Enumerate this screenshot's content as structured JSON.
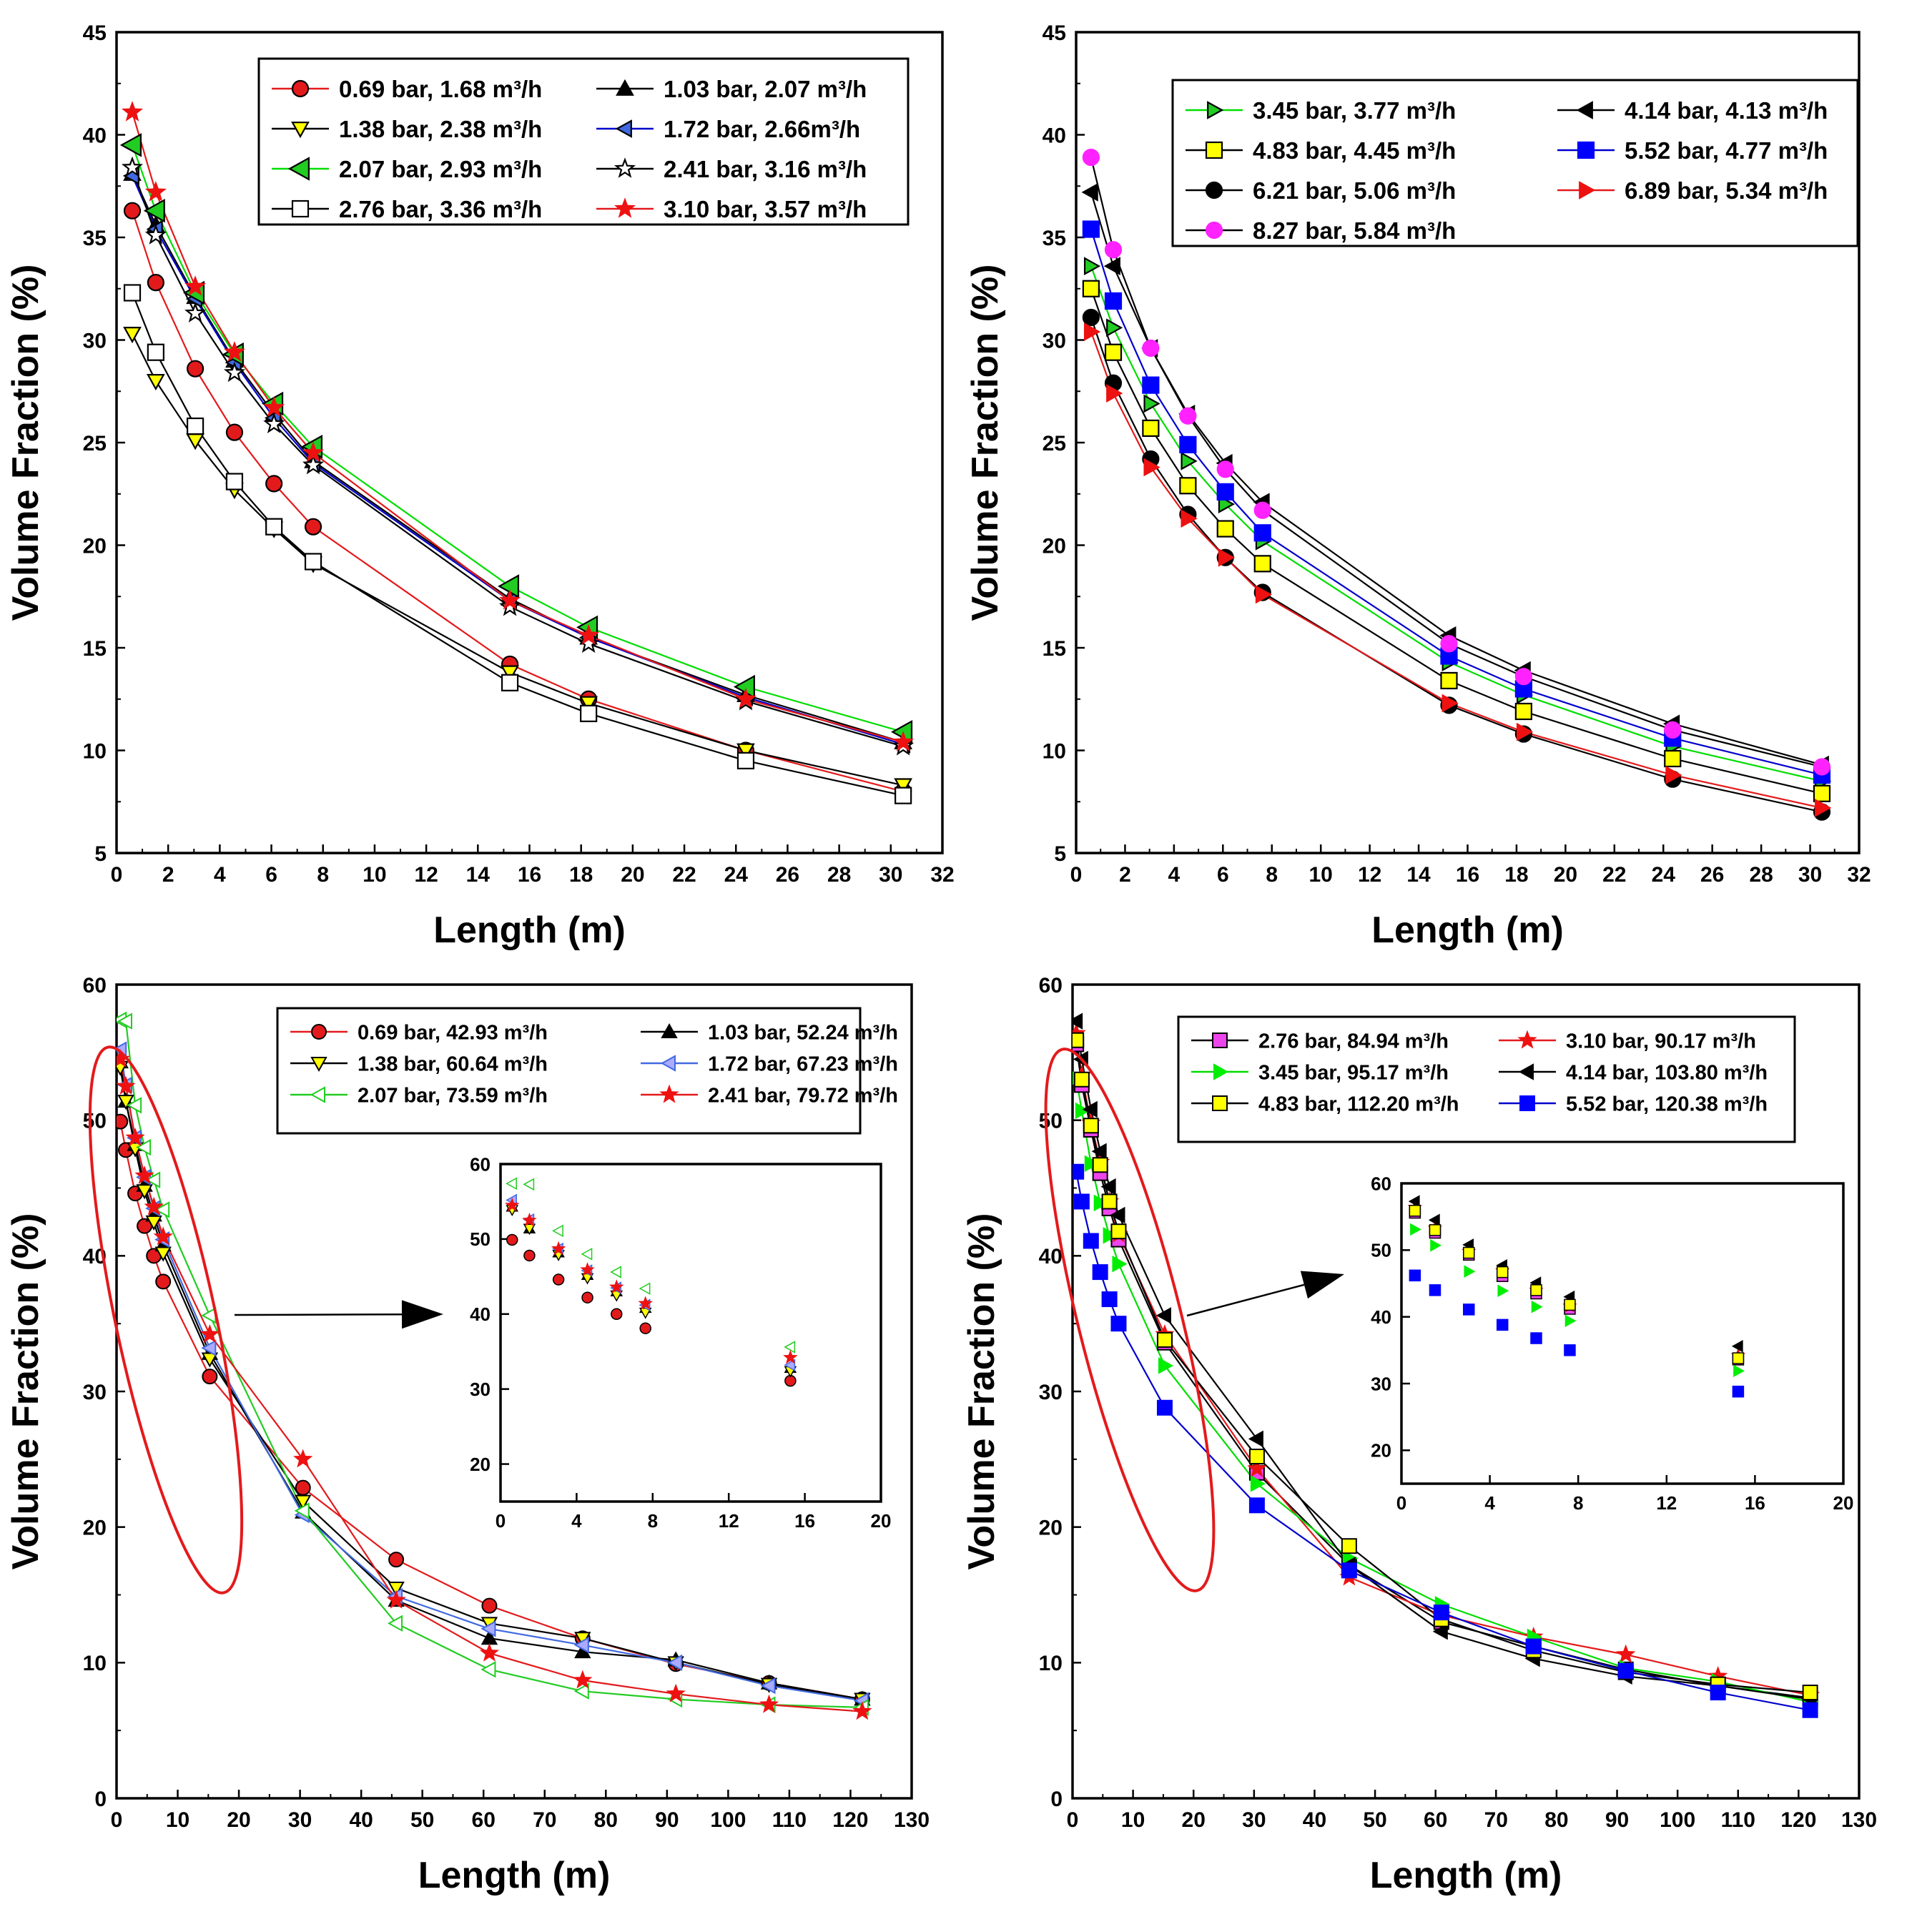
{
  "chart_data": [
    {
      "type": "line",
      "panel": "top-left",
      "xlabel": "Length (m)",
      "ylabel": "Volume Fraction (%)",
      "xlim": [
        0,
        32
      ],
      "ylim": [
        5,
        45
      ],
      "xticks": [
        0,
        2,
        4,
        6,
        8,
        10,
        12,
        14,
        16,
        18,
        20,
        22,
        24,
        26,
        28,
        30,
        32
      ],
      "yticks": [
        5,
        10,
        15,
        20,
        25,
        30,
        35,
        40,
        45
      ],
      "legend_cols": 2,
      "x": [
        0.61,
        1.52,
        3.05,
        4.57,
        6.1,
        7.62,
        15.24,
        18.29,
        24.38,
        30.48
      ],
      "series": [
        {
          "name": "0.69 bar, 1.68 m³/h",
          "color": "#e31a1c",
          "marker": "circle",
          "fill": "#e31a1c",
          "mstroke": "#000000",
          "values": [
            36.3,
            32.8,
            28.6,
            25.5,
            23.0,
            20.9,
            14.2,
            12.5,
            10.0,
            8.0
          ]
        },
        {
          "name": "1.03 bar, 2.07 m³/h",
          "color": "#000000",
          "marker": "triangle-up",
          "fill": "#000000",
          "mstroke": "#000000",
          "values": [
            38.1,
            35.6,
            32.1,
            29.0,
            26.4,
            24.1,
            17.4,
            15.5,
            12.7,
            10.4
          ]
        },
        {
          "name": "1.38 bar, 2.38 m³/h",
          "color": "#000000",
          "marker": "triangle-down",
          "fill": "#ffff00",
          "mstroke": "#000000",
          "values": [
            30.3,
            28.0,
            25.1,
            22.7,
            20.8,
            19.1,
            13.8,
            12.3,
            10.0,
            8.3
          ]
        },
        {
          "name": "1.72 bar, 2.66m³/h",
          "color": "#0000cc",
          "marker": "triangle-left",
          "fill": "#4169e1",
          "mstroke": "#000000",
          "values": [
            38.0,
            35.4,
            32.0,
            28.9,
            26.2,
            24.0,
            17.3,
            15.5,
            12.6,
            10.3
          ]
        },
        {
          "name": "2.07 bar, 2.93 m³/h",
          "color": "#00dd00",
          "marker": "triangle-left-big",
          "fill": "#22cc22",
          "mstroke": "#000000",
          "values": [
            39.5,
            36.3,
            32.3,
            29.3,
            26.9,
            24.8,
            18.0,
            16.0,
            13.1,
            10.9
          ]
        },
        {
          "name": "2.41 bar, 3.16 m³/h",
          "color": "#000000",
          "marker": "star-open",
          "fill": "#ffffff",
          "mstroke": "#000000",
          "values": [
            38.4,
            35.1,
            31.3,
            28.4,
            25.9,
            23.9,
            17.0,
            15.2,
            12.4,
            10.2
          ]
        },
        {
          "name": "2.76 bar, 3.36 m³/h",
          "color": "#000000",
          "marker": "square-open",
          "fill": "#ffffff",
          "mstroke": "#000000",
          "values": [
            32.3,
            29.4,
            25.8,
            23.1,
            20.9,
            19.2,
            13.3,
            11.8,
            9.5,
            7.8
          ]
        },
        {
          "name": "3.10 bar, 3.57 m³/h",
          "color": "#e31a1c",
          "marker": "star",
          "fill": "#ee1111",
          "mstroke": "#ee1111",
          "values": [
            41.1,
            37.2,
            32.6,
            29.4,
            26.7,
            24.5,
            17.3,
            15.6,
            12.5,
            10.4
          ]
        }
      ]
    },
    {
      "type": "line",
      "panel": "top-right",
      "xlabel": "Length (m)",
      "ylabel": "Volume Fraction (%)",
      "xlim": [
        0,
        32
      ],
      "ylim": [
        5,
        45
      ],
      "xticks": [
        0,
        2,
        4,
        6,
        8,
        10,
        12,
        14,
        16,
        18,
        20,
        22,
        24,
        26,
        28,
        30,
        32
      ],
      "yticks": [
        5,
        10,
        15,
        20,
        25,
        30,
        35,
        40,
        45
      ],
      "legend_cols": 2,
      "x": [
        0.61,
        1.52,
        3.05,
        4.57,
        6.1,
        7.62,
        15.24,
        18.29,
        24.38,
        30.48
      ],
      "series": [
        {
          "name": "3.45 bar, 3.77 m³/h",
          "color": "#00dd00",
          "marker": "triangle-right",
          "fill": "#22cc22",
          "mstroke": "#000000",
          "values": [
            33.6,
            30.6,
            26.9,
            24.1,
            22.0,
            20.2,
            14.3,
            12.7,
            10.2,
            8.5
          ]
        },
        {
          "name": "4.14 bar, 4.13 m³/h",
          "color": "#000000",
          "marker": "triangle-left",
          "fill": "#000000",
          "mstroke": "#000000",
          "values": [
            37.2,
            33.6,
            29.6,
            26.4,
            24.0,
            22.1,
            15.6,
            13.9,
            11.3,
            9.3
          ]
        },
        {
          "name": "4.83 bar, 4.45 m³/h",
          "color": "#000000",
          "marker": "square",
          "fill": "#ffff00",
          "mstroke": "#000000",
          "values": [
            32.5,
            29.4,
            25.7,
            22.9,
            20.8,
            19.1,
            13.4,
            11.9,
            9.6,
            7.9
          ]
        },
        {
          "name": "5.52 bar, 4.77 m³/h",
          "color": "#0000cc",
          "marker": "square",
          "fill": "#0000ff",
          "mstroke": "#0000ff",
          "values": [
            35.4,
            31.9,
            27.8,
            24.9,
            22.6,
            20.6,
            14.6,
            13.0,
            10.6,
            8.8
          ]
        },
        {
          "name": "6.21 bar, 5.06 m³/h",
          "color": "#000000",
          "marker": "circle",
          "fill": "#000000",
          "mstroke": "#000000",
          "values": [
            31.1,
            27.9,
            24.2,
            21.5,
            19.4,
            17.7,
            12.2,
            10.8,
            8.6,
            7.0
          ]
        },
        {
          "name": "6.89 bar, 5.34 m³/h",
          "color": "#e31a1c",
          "marker": "triangle-right",
          "fill": "#ee1111",
          "mstroke": "#ee1111",
          "values": [
            30.4,
            27.4,
            23.8,
            21.3,
            19.4,
            17.6,
            12.3,
            10.9,
            8.8,
            7.2
          ]
        },
        {
          "name": "8.27 bar, 5.84 m³/h",
          "color": "#000000",
          "marker": "circle",
          "fill": "#ff22ff",
          "mstroke": "#ff22ff",
          "values": [
            38.9,
            34.4,
            29.6,
            26.3,
            23.7,
            21.7,
            15.2,
            13.6,
            11.0,
            9.2
          ]
        }
      ]
    },
    {
      "type": "line",
      "panel": "bottom-left",
      "xlabel": "Length (m)",
      "ylabel": "Volume Fraction (%)",
      "xlim": [
        0,
        130
      ],
      "ylim": [
        0,
        60
      ],
      "xticks": [
        0,
        10,
        20,
        30,
        40,
        50,
        60,
        70,
        80,
        90,
        100,
        110,
        120,
        130
      ],
      "yticks": [
        0,
        10,
        20,
        30,
        40,
        50,
        60
      ],
      "legend_cols": 2,
      "x": [
        0.61,
        1.52,
        3.05,
        4.57,
        6.1,
        7.62,
        15.24,
        30.48,
        45.72,
        60.96,
        76.2,
        91.44,
        106.68,
        121.92
      ],
      "series": [
        {
          "name": "0.69 bar, 42.93 m³/h",
          "color": "#e31a1c",
          "marker": "circle",
          "fill": "#e31a1c",
          "mstroke": "#000000",
          "values": [
            49.9,
            47.8,
            44.6,
            42.2,
            40.0,
            38.1,
            31.1,
            22.9,
            17.6,
            14.2,
            11.8,
            9.9,
            8.5,
            7.3
          ]
        },
        {
          "name": "1.03 bar, 52.24 m³/h",
          "color": "#000000",
          "marker": "triangle-up",
          "fill": "#000000",
          "mstroke": "#000000",
          "values": [
            54.3,
            51.4,
            48.2,
            45.2,
            43.0,
            40.8,
            32.8,
            21.1,
            14.6,
            11.8,
            10.8,
            10.2,
            8.5,
            7.3
          ]
        },
        {
          "name": "1.38 bar, 60.64 m³/h",
          "color": "#000000",
          "marker": "triangle-down",
          "fill": "#ffff00",
          "mstroke": "#000000",
          "values": [
            53.9,
            51.4,
            47.9,
            44.8,
            42.5,
            40.2,
            32.4,
            21.9,
            15.5,
            12.9,
            11.8,
            10.0,
            8.4,
            7.3
          ]
        },
        {
          "name": "1.72 bar, 67.23 m³/h",
          "color": "#4169e1",
          "marker": "triangle-left",
          "fill": "#aaaaff",
          "mstroke": "#4169e1",
          "values": [
            55.2,
            52.6,
            48.7,
            45.8,
            43.5,
            41.2,
            33.2,
            20.9,
            14.9,
            12.5,
            11.3,
            10.0,
            8.3,
            7.2
          ]
        },
        {
          "name": "2.07 bar, 73.59 m³/h",
          "color": "#22cc22",
          "marker": "triangle-left-open",
          "fill": "#ffffff",
          "mstroke": "#22cc22",
          "values": [
            57.4,
            57.3,
            51.1,
            48.0,
            45.6,
            43.4,
            35.6,
            21.2,
            12.9,
            9.5,
            7.9,
            7.3,
            6.9,
            6.7
          ]
        },
        {
          "name": "2.41 bar, 79.72 m³/h",
          "color": "#e31a1c",
          "marker": "star",
          "fill": "#ee1111",
          "mstroke": "#ee1111",
          "values": [
            54.5,
            52.5,
            48.7,
            45.9,
            43.6,
            41.4,
            34.2,
            25.0,
            14.6,
            10.7,
            8.7,
            7.7,
            6.9,
            6.4
          ]
        }
      ],
      "inset": {
        "xlim": [
          0,
          20
        ],
        "ylim": [
          15,
          60
        ],
        "xticks": [
          0,
          4,
          8,
          12,
          16,
          20
        ],
        "yticks": [
          20,
          30,
          40,
          50,
          60
        ],
        "points_used": 7
      }
    },
    {
      "type": "line",
      "panel": "bottom-right",
      "xlabel": "Length (m)",
      "ylabel": "Volume Fraction (%)",
      "xlim": [
        0,
        130
      ],
      "ylim": [
        0,
        60
      ],
      "xticks": [
        0,
        10,
        20,
        30,
        40,
        50,
        60,
        70,
        80,
        90,
        100,
        110,
        120,
        130
      ],
      "yticks": [
        0,
        10,
        20,
        30,
        40,
        50,
        60
      ],
      "legend_cols": 2,
      "x": [
        0.61,
        1.52,
        3.05,
        4.57,
        6.1,
        7.62,
        15.24,
        30.48,
        45.72,
        60.96,
        76.2,
        91.44,
        106.68,
        121.92
      ],
      "series": [
        {
          "name": "2.76 bar, 84.94 m³/h",
          "color": "#000000",
          "marker": "square",
          "fill": "#ee44ee",
          "mstroke": "#000000",
          "values": [
            55.6,
            52.6,
            49.3,
            46.1,
            43.5,
            41.2,
            33.6,
            24.0,
            17.2,
            13.0,
            11.2,
            9.5,
            8.3,
            7.4
          ]
        },
        {
          "name": "3.10 bar, 90.17 m³/h",
          "color": "#e31a1c",
          "marker": "star",
          "fill": "#ee1111",
          "mstroke": "#ee1111",
          "values": [
            56.4,
            53.3,
            49.8,
            46.9,
            44.0,
            41.6,
            34.2,
            24.3,
            16.3,
            13.5,
            11.9,
            10.6,
            9.0,
            7.6
          ]
        },
        {
          "name": "3.45 bar, 95.17 m³/h",
          "color": "#00dd00",
          "marker": "triangle-right",
          "fill": "#00ee00",
          "mstroke": "#00ee00",
          "values": [
            53.1,
            50.7,
            46.8,
            43.9,
            41.5,
            39.4,
            31.9,
            23.2,
            17.7,
            14.3,
            11.9,
            9.6,
            8.6,
            7.1
          ]
        },
        {
          "name": "4.14 bar, 103.80 m³/h",
          "color": "#000000",
          "marker": "triangle-left",
          "fill": "#000000",
          "mstroke": "#000000",
          "values": [
            57.3,
            54.5,
            50.8,
            47.7,
            45.1,
            43.0,
            35.6,
            26.5,
            17.2,
            12.3,
            10.3,
            9.0,
            8.3,
            7.3
          ]
        },
        {
          "name": "4.83 bar, 112.20 m³/h",
          "color": "#000000",
          "marker": "square",
          "fill": "#ffff00",
          "mstroke": "#000000",
          "values": [
            55.9,
            53.0,
            49.6,
            46.7,
            44.0,
            41.8,
            33.8,
            25.2,
            18.6,
            13.2,
            10.9,
            9.3,
            8.4,
            7.8
          ]
        },
        {
          "name": "5.52 bar, 120.38 m³/h",
          "color": "#0000cc",
          "marker": "square",
          "fill": "#0000ff",
          "mstroke": "#0000ff",
          "values": [
            46.2,
            44.0,
            41.1,
            38.8,
            36.8,
            35.0,
            28.8,
            21.6,
            16.8,
            13.7,
            11.2,
            9.4,
            7.8,
            6.5
          ]
        }
      ],
      "inset": {
        "xlim": [
          0,
          20
        ],
        "ylim": [
          15,
          60
        ],
        "xticks": [
          0,
          4,
          8,
          12,
          16,
          20
        ],
        "yticks": [
          20,
          30,
          40,
          50,
          60
        ],
        "points_used": 7
      }
    }
  ]
}
